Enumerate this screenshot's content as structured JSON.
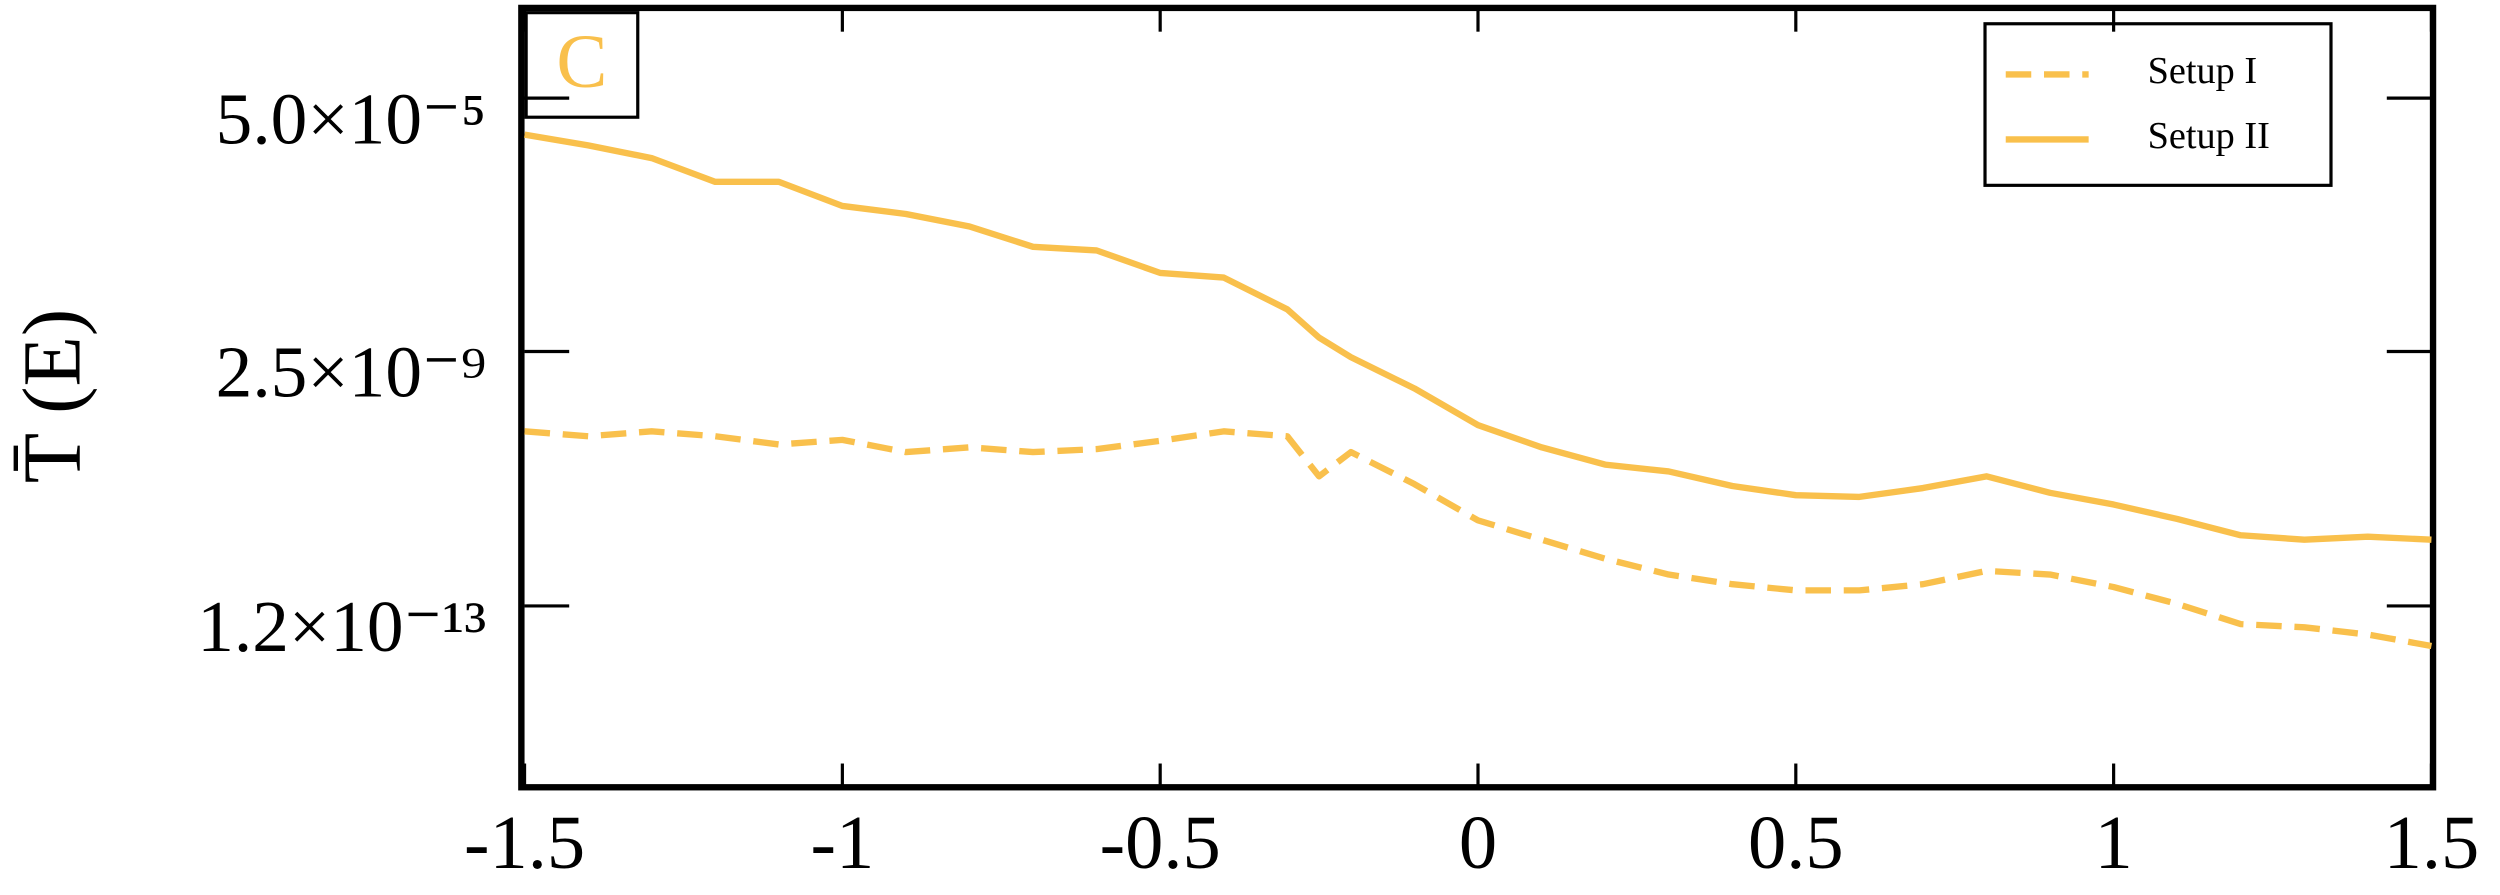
{
  "chart_data": {
    "type": "line",
    "panel_label": "C",
    "ylabel": "T̄ (E)",
    "log_y": true,
    "x": [
      -1.5,
      -1.4,
      -1.3,
      -1.2,
      -1.1,
      -1.0,
      -0.9,
      -0.8,
      -0.7,
      -0.6,
      -0.5,
      -0.4,
      -0.3,
      -0.25,
      -0.2,
      -0.1,
      0,
      0.1,
      0.2,
      0.3,
      0.4,
      0.5,
      0.6,
      0.7,
      0.8,
      0.9,
      1.0,
      1.1,
      1.2,
      1.3,
      1.4,
      1.5
    ],
    "series": [
      {
        "name": "Setup I",
        "color": "#f9c04c",
        "dash": true,
        "values": [
          1.1e-10,
          9.1e-11,
          1.1e-10,
          9.1e-11,
          6.6e-11,
          7.9e-11,
          4.9e-11,
          5.9e-11,
          4.9e-11,
          5.5e-11,
          7.6e-11,
          1.1e-10,
          9.1e-11,
          1.9e-11,
          4.9e-11,
          1.4e-11,
          3.4e-12,
          1.6e-12,
          7.6e-13,
          4.1e-13,
          2.8e-13,
          2.2e-13,
          2.2e-13,
          2.8e-13,
          4.7e-13,
          4.1e-13,
          2.5e-13,
          1.3e-13,
          5.9e-14,
          5.2e-14,
          3.9e-14,
          2.5e-14
        ]
      },
      {
        "name": "Setup II",
        "color": "#f9c04c",
        "dash": false,
        "values": [
          1.2e-05,
          7.9e-06,
          4.8e-06,
          1.9e-06,
          1.9e-06,
          7.4e-07,
          5.4e-07,
          3.3e-07,
          1.5e-07,
          1.3e-07,
          5.4e-08,
          4.5e-08,
          1.3e-08,
          4.3e-09,
          2e-09,
          5.9e-10,
          1.4e-10,
          5.9e-11,
          3e-11,
          2.3e-11,
          1.3e-11,
          9.1e-12,
          8.5e-12,
          1.2e-11,
          1.9e-11,
          1e-11,
          6.3e-12,
          3.6e-12,
          1.9e-12,
          1.6e-12,
          1.8e-12,
          1.6e-12
        ]
      }
    ],
    "xlim": [
      -1.5,
      1.5
    ],
    "xticks": [
      -1.5,
      -1,
      -0.5,
      0,
      0.5,
      1,
      1.5
    ],
    "ylim": [
      1e-16,
      0.0017
    ],
    "yticks": [
      {
        "value": 1.2e-13,
        "label": "1.2×10⁻¹³"
      },
      {
        "value": 2.5e-09,
        "label": "2.5×10⁻⁹"
      },
      {
        "value": 5e-05,
        "label": "5.0×10⁻⁵"
      }
    ],
    "legend": "upper right"
  }
}
